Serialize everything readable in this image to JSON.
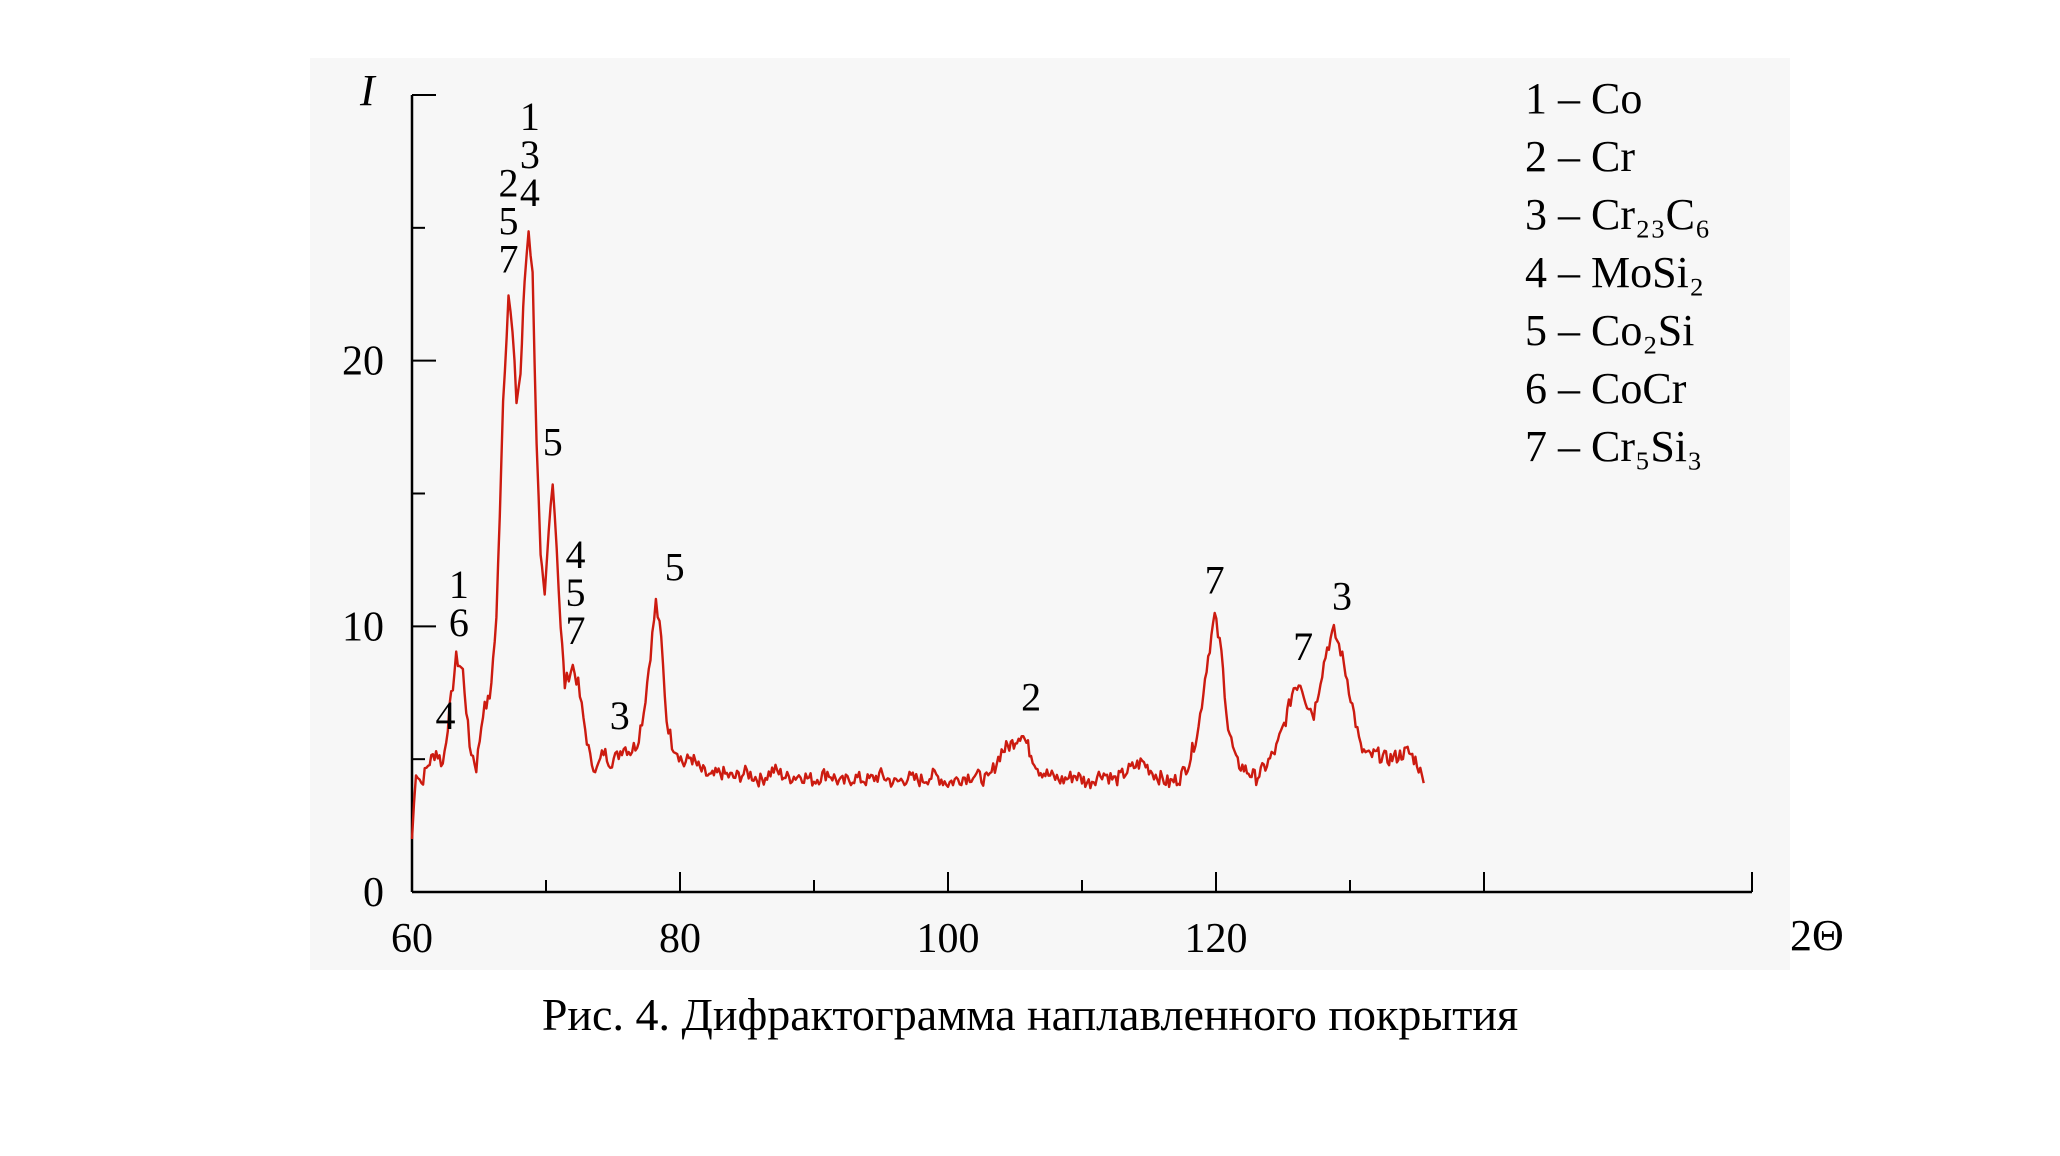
{
  "caption": "Рис. 4. Дифрактограмма наплавленного покрытия",
  "colors": {
    "trace": "#cc1b10",
    "panel": "#f7f7f7",
    "axis": "#000000"
  },
  "chart_data": {
    "type": "line",
    "title": "",
    "xlabel": "2Θ",
    "ylabel": "I",
    "xlim": [
      60,
      160
    ],
    "ylim": [
      0,
      30
    ],
    "x_ticks": [
      "60",
      "80",
      "100",
      "120"
    ],
    "x_tick_values": [
      60,
      80,
      100,
      120
    ],
    "y_ticks": [
      "0",
      "10",
      "20"
    ],
    "y_tick_values": [
      0,
      10,
      20
    ],
    "grid": false,
    "legend_position": "top-right",
    "legend": [
      "1 – Co",
      "2 – Cr",
      "3 – Cr₂₃C₆",
      "4 – MoSi₂",
      "5 – Co₂Si",
      "6 – CoCr",
      "7 – Cr₅Si₃"
    ],
    "series": [
      {
        "x": [
          60.0,
          60.3,
          60.7,
          61.2,
          61.8,
          62.3,
          62.8,
          63.3,
          63.8,
          64.3,
          64.8,
          65.3,
          65.8,
          66.3,
          66.8,
          67.2,
          67.5,
          67.8,
          68.1,
          68.4,
          68.7,
          69.0,
          69.3,
          69.6,
          69.9,
          70.2,
          70.5,
          70.8,
          71.1,
          71.4,
          71.7,
          72.0,
          72.4,
          72.8,
          73.3,
          73.8,
          74.3,
          74.8,
          75.3,
          75.8,
          76.3,
          76.8,
          77.3,
          77.8,
          78.2,
          78.6,
          79.0,
          79.4,
          79.8,
          80.3,
          80.8,
          81.5,
          82.3,
          83.0,
          84.0,
          85.0,
          86.0,
          87.0,
          88.0,
          89.0,
          90.0,
          91.0,
          92.0,
          93.0,
          94.0,
          95.0,
          96.0,
          97.0,
          98.0,
          99.0,
          100.0,
          101.0,
          102.0,
          103.0,
          104.0,
          104.8,
          105.5,
          106.2,
          106.8,
          107.5,
          108.5,
          109.5,
          110.5,
          111.5,
          112.5,
          113.5,
          114.5,
          115.5,
          116.5,
          117.3,
          118.0,
          118.7,
          119.3,
          119.9,
          120.4,
          120.9,
          121.5,
          122.2,
          123.0,
          123.8,
          124.5,
          125.2,
          125.8,
          126.3,
          126.8,
          127.3,
          127.8,
          128.3,
          128.8,
          129.3,
          129.8,
          130.3,
          130.8,
          131.4,
          132.0,
          132.8,
          133.5,
          134.3,
          135.0,
          135.5
        ],
        "y": [
          2.0,
          4.6,
          4.1,
          4.8,
          5.3,
          4.8,
          6.8,
          8.8,
          8.3,
          5.5,
          4.7,
          6.8,
          7.3,
          10.2,
          18.5,
          22.5,
          21.0,
          18.5,
          19.5,
          23.0,
          25.0,
          23.2,
          17.0,
          12.5,
          11.0,
          13.5,
          15.6,
          13.0,
          10.0,
          7.8,
          8.2,
          8.5,
          7.8,
          6.5,
          5.0,
          4.6,
          5.3,
          4.9,
          5.1,
          5.5,
          5.3,
          5.6,
          6.8,
          9.0,
          10.9,
          9.5,
          6.5,
          5.6,
          5.3,
          4.8,
          5.1,
          4.6,
          4.3,
          4.5,
          4.3,
          4.5,
          4.2,
          4.6,
          4.3,
          4.4,
          4.2,
          4.5,
          4.1,
          4.3,
          4.2,
          4.4,
          4.1,
          4.3,
          4.2,
          4.4,
          4.1,
          4.3,
          4.4,
          4.2,
          5.3,
          5.6,
          6.0,
          5.2,
          4.6,
          4.4,
          4.2,
          4.4,
          4.1,
          4.5,
          4.2,
          4.6,
          4.9,
          4.4,
          4.1,
          4.3,
          4.9,
          6.2,
          8.5,
          10.4,
          9.0,
          6.2,
          4.9,
          4.6,
          4.3,
          4.8,
          5.4,
          6.5,
          7.7,
          7.9,
          7.1,
          6.7,
          8.0,
          9.2,
          9.8,
          9.1,
          8.0,
          6.7,
          5.4,
          5.1,
          5.2,
          5.0,
          5.1,
          5.3,
          4.9,
          4.1
        ]
      }
    ],
    "peak_labels": [
      {
        "text": "4",
        "x": 62.5,
        "y": 5.3
      },
      {
        "text": "1\n6",
        "x": 63.5,
        "y": 8.8
      },
      {
        "text": "2\n5\n7",
        "x": 67.2,
        "y": 22.5
      },
      {
        "text": "1\n3\n4",
        "x": 68.8,
        "y": 25.0
      },
      {
        "text": "5",
        "x": 70.5,
        "y": 15.6
      },
      {
        "text": "4\n5\n7",
        "x": 72.2,
        "y": 8.5
      },
      {
        "text": "3",
        "x": 75.5,
        "y": 5.3
      },
      {
        "text": "5",
        "x": 79.6,
        "y": 10.9
      },
      {
        "text": "2",
        "x": 106.2,
        "y": 6.0
      },
      {
        "text": "7",
        "x": 119.9,
        "y": 10.4
      },
      {
        "text": "7",
        "x": 126.5,
        "y": 7.9
      },
      {
        "text": "3",
        "x": 129.4,
        "y": 9.8
      }
    ]
  }
}
